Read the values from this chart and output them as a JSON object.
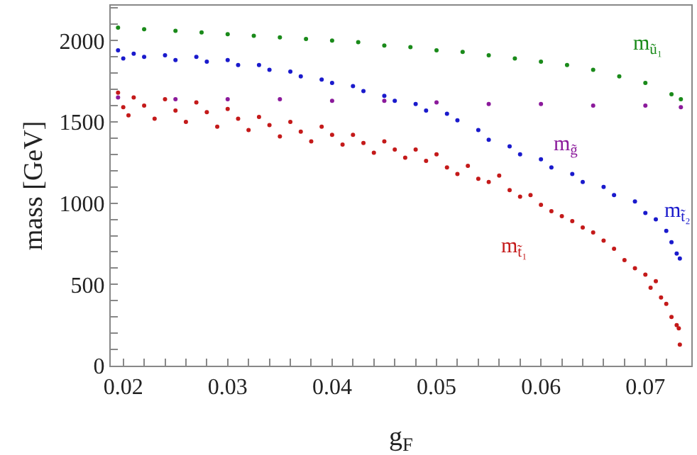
{
  "chart_data": {
    "type": "scatter",
    "xlabel": "g$_{F}$",
    "ylabel": "mass [GeV]",
    "marker": "circle",
    "legend": false,
    "xlim": [
      0.0188,
      0.0744
    ],
    "ylim": [
      0,
      2215
    ],
    "xticks": [
      0.02,
      {
        "value": 0.022,
        "label": null
      },
      {
        "value": 0.024,
        "label": null
      },
      {
        "value": 0.026,
        "label": null
      },
      {
        "value": 0.028,
        "label": null
      },
      0.03,
      {
        "value": 0.032,
        "label": null
      },
      {
        "value": 0.034,
        "label": null
      },
      {
        "value": 0.036,
        "label": null
      },
      {
        "value": 0.038,
        "label": null
      },
      0.04,
      {
        "value": 0.042,
        "label": null
      },
      {
        "value": 0.044,
        "label": null
      },
      {
        "value": 0.046,
        "label": null
      },
      {
        "value": 0.048,
        "label": null
      },
      0.05,
      {
        "value": 0.052,
        "label": null
      },
      {
        "value": 0.054,
        "label": null
      },
      {
        "value": 0.056,
        "label": null
      },
      {
        "value": 0.058,
        "label": null
      },
      0.06,
      {
        "value": 0.062,
        "label": null
      },
      {
        "value": 0.064,
        "label": null
      },
      {
        "value": 0.066,
        "label": null
      },
      {
        "value": 0.068,
        "label": null
      },
      0.07,
      {
        "value": 0.072,
        "label": null
      }
    ],
    "yticks": [
      0,
      {
        "value": 100,
        "label": null
      },
      {
        "value": 200,
        "label": null
      },
      {
        "value": 300,
        "label": null
      },
      {
        "value": 400,
        "label": null
      },
      500,
      {
        "value": 600,
        "label": null
      },
      {
        "value": 700,
        "label": null
      },
      {
        "value": 800,
        "label": null
      },
      {
        "value": 900,
        "label": null
      },
      1000,
      {
        "value": 1100,
        "label": null
      },
      {
        "value": 1200,
        "label": null
      },
      {
        "value": 1300,
        "label": null
      },
      {
        "value": 1400,
        "label": null
      },
      1500,
      {
        "value": 1600,
        "label": null
      },
      {
        "value": 1700,
        "label": null
      },
      {
        "value": 1800,
        "label": null
      },
      {
        "value": 1900,
        "label": null
      },
      2000,
      {
        "value": 2100,
        "label": null
      },
      {
        "value": 2200,
        "label": null
      }
    ],
    "series": [
      {
        "name": "m$_{ũ₁}$",
        "color": "#1a8a1a",
        "x": [
          0.0195,
          0.022,
          0.025,
          0.0275,
          0.03,
          0.0325,
          0.035,
          0.0375,
          0.04,
          0.0425,
          0.045,
          0.0475,
          0.05,
          0.0525,
          0.055,
          0.0575,
          0.06,
          0.0625,
          0.065,
          0.0675,
          0.07,
          0.0725,
          0.0734
        ],
        "values": [
          2080,
          2070,
          2060,
          2050,
          2040,
          2030,
          2020,
          2010,
          2000,
          1990,
          1970,
          1960,
          1940,
          1930,
          1910,
          1890,
          1870,
          1850,
          1820,
          1780,
          1740,
          1670,
          1640
        ]
      },
      {
        "name": "m$_{g̃}$",
        "color": "#8b1a9b",
        "x": [
          0.0195,
          0.025,
          0.03,
          0.035,
          0.04,
          0.045,
          0.05,
          0.055,
          0.06,
          0.065,
          0.07,
          0.0734
        ],
        "values": [
          1650,
          1640,
          1640,
          1640,
          1630,
          1630,
          1620,
          1610,
          1610,
          1600,
          1600,
          1590
        ]
      },
      {
        "name": "m$_{t̃₂}$",
        "color": "#1a1acc",
        "x": [
          0.0195,
          0.02,
          0.021,
          0.022,
          0.024,
          0.025,
          0.027,
          0.028,
          0.03,
          0.031,
          0.033,
          0.034,
          0.036,
          0.037,
          0.039,
          0.04,
          0.042,
          0.043,
          0.045,
          0.046,
          0.048,
          0.049,
          0.051,
          0.052,
          0.054,
          0.055,
          0.057,
          0.058,
          0.06,
          0.061,
          0.063,
          0.064,
          0.066,
          0.067,
          0.069,
          0.07,
          0.071,
          0.072,
          0.0725,
          0.073,
          0.0733
        ],
        "values": [
          1940,
          1890,
          1920,
          1900,
          1910,
          1880,
          1900,
          1870,
          1880,
          1850,
          1850,
          1820,
          1810,
          1780,
          1760,
          1740,
          1720,
          1690,
          1660,
          1630,
          1610,
          1570,
          1550,
          1510,
          1450,
          1390,
          1350,
          1300,
          1270,
          1220,
          1180,
          1130,
          1100,
          1050,
          1010,
          940,
          900,
          830,
          760,
          690,
          660
        ]
      },
      {
        "name": "m$_{t̃₁}$",
        "color": "#c41a1a",
        "x": [
          0.0195,
          0.02,
          0.0205,
          0.021,
          0.022,
          0.023,
          0.024,
          0.025,
          0.026,
          0.027,
          0.028,
          0.029,
          0.03,
          0.031,
          0.032,
          0.033,
          0.034,
          0.035,
          0.036,
          0.037,
          0.038,
          0.039,
          0.04,
          0.041,
          0.042,
          0.043,
          0.044,
          0.045,
          0.046,
          0.047,
          0.048,
          0.049,
          0.05,
          0.051,
          0.052,
          0.053,
          0.054,
          0.055,
          0.056,
          0.057,
          0.058,
          0.059,
          0.06,
          0.061,
          0.062,
          0.063,
          0.064,
          0.065,
          0.066,
          0.067,
          0.068,
          0.069,
          0.07,
          0.0705,
          0.071,
          0.0715,
          0.072,
          0.0725,
          0.073,
          0.0732,
          0.0733
        ],
        "values": [
          1680,
          1590,
          1540,
          1650,
          1600,
          1520,
          1640,
          1570,
          1500,
          1620,
          1560,
          1470,
          1580,
          1520,
          1450,
          1530,
          1480,
          1410,
          1500,
          1440,
          1380,
          1470,
          1420,
          1360,
          1420,
          1370,
          1310,
          1380,
          1330,
          1280,
          1330,
          1260,
          1300,
          1220,
          1180,
          1230,
          1150,
          1130,
          1170,
          1080,
          1040,
          1050,
          990,
          950,
          920,
          890,
          850,
          820,
          770,
          720,
          650,
          600,
          560,
          480,
          520,
          420,
          380,
          300,
          250,
          230,
          130
        ]
      }
    ]
  }
}
